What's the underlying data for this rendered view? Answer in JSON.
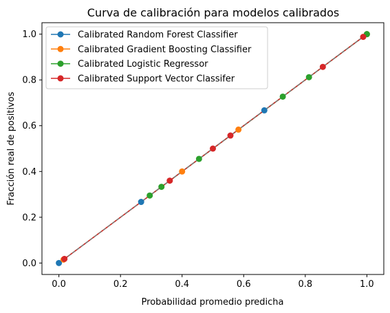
{
  "chart_data": {
    "type": "line",
    "title": "Curva de calibración para modelos calibrados",
    "xlabel": "Probabilidad promedio predicha",
    "ylabel": "Fracción real de positivos",
    "xlim": [
      -0.055,
      1.055
    ],
    "ylim": [
      -0.05,
      1.05
    ],
    "xticks": [
      "0.0",
      "0.2",
      "0.4",
      "0.6",
      "0.8",
      "1.0"
    ],
    "yticks": [
      "0.0",
      "0.2",
      "0.4",
      "0.6",
      "0.8",
      "1.0"
    ],
    "grid": false,
    "legend_position": "upper-left",
    "reference_line": {
      "style": "dashed",
      "color": "#7f7f7f",
      "from": [
        0,
        0
      ],
      "to": [
        1,
        1
      ]
    },
    "series": [
      {
        "name": "Calibrated Random Forest Classifier",
        "color": "#1f77b4",
        "x": [
          0.0,
          0.267,
          0.667,
          1.0
        ],
        "y": [
          0.0,
          0.267,
          0.667,
          1.0
        ]
      },
      {
        "name": "Calibrated Gradient Boosting Classifier",
        "color": "#ff7f0e",
        "x": [
          0.015,
          0.4,
          0.583,
          1.0
        ],
        "y": [
          0.015,
          0.4,
          0.583,
          1.0
        ]
      },
      {
        "name": "Calibrated Logistic Regressor",
        "color": "#2ca02c",
        "x": [
          0.295,
          0.333,
          0.455,
          0.727,
          0.812,
          1.0
        ],
        "y": [
          0.295,
          0.333,
          0.455,
          0.727,
          0.812,
          1.0
        ]
      },
      {
        "name": "Calibrated Support Vector Classifer",
        "color": "#d62728",
        "x": [
          0.018,
          0.36,
          0.5,
          0.557,
          0.857,
          0.988
        ],
        "y": [
          0.018,
          0.36,
          0.5,
          0.557,
          0.857,
          0.988
        ]
      }
    ]
  }
}
